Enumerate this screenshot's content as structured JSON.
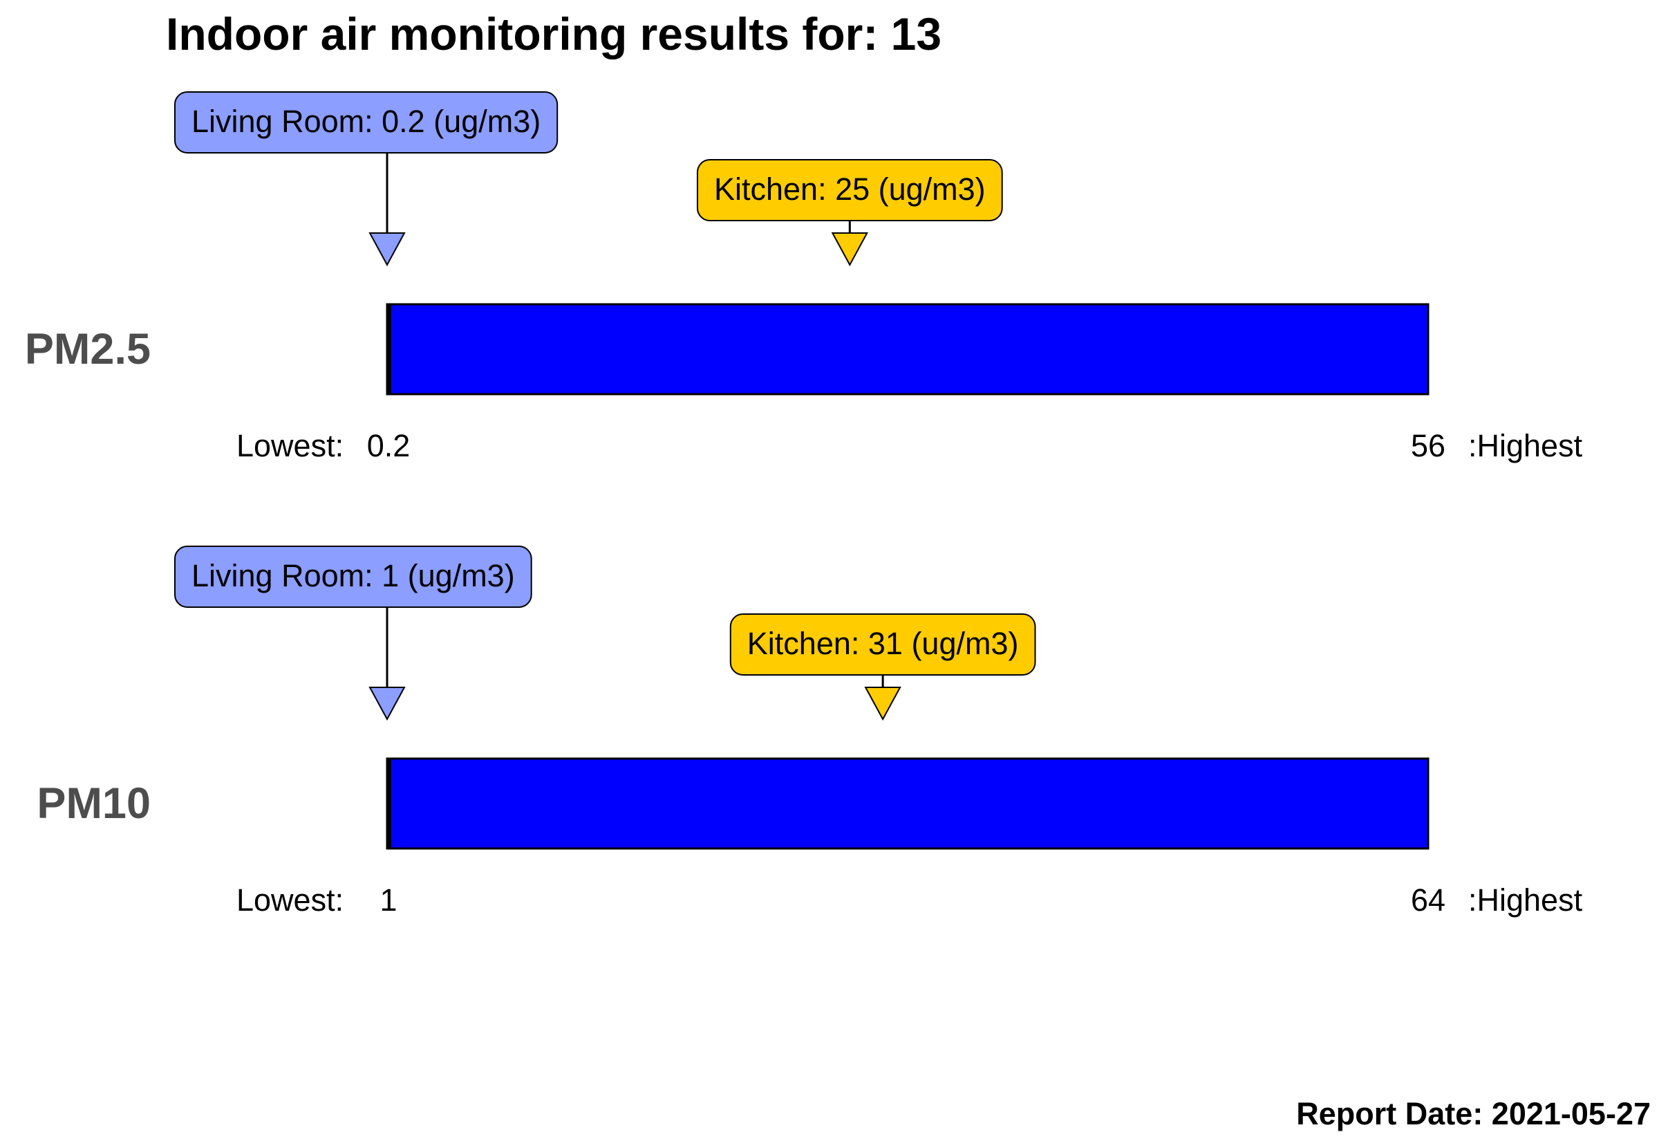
{
  "title": "Indoor air monitoring results for: 13",
  "report_date": "Report Date: 2021-05-27",
  "colors": {
    "bar": "#0000ff",
    "living_room": "#8c9eff",
    "kitchen": "#ffcc00",
    "pollutant_label": "#4d4d4d",
    "outline": "#000000"
  },
  "chart_data": [
    {
      "type": "bar",
      "pollutant": "PM2.5",
      "lowest_label": "Lowest:",
      "lowest_value": "0.2",
      "highest_value": "56",
      "highest_label": ":Highest",
      "range": [
        0.2,
        56
      ],
      "readings": [
        {
          "room": "Living Room",
          "value": 0.2,
          "label": "Living Room: 0.2 (ug/m3)",
          "color": "#8c9eff"
        },
        {
          "room": "Kitchen",
          "value": 25,
          "label": "Kitchen: 25 (ug/m3)",
          "color": "#ffcc00"
        }
      ]
    },
    {
      "type": "bar",
      "pollutant": "PM10",
      "lowest_label": "Lowest:",
      "lowest_value": "1",
      "highest_value": "64",
      "highest_label": ":Highest",
      "range": [
        1,
        64
      ],
      "readings": [
        {
          "room": "Living Room",
          "value": 1,
          "label": "Living Room: 1 (ug/m3)",
          "color": "#8c9eff"
        },
        {
          "room": "Kitchen",
          "value": 31,
          "label": "Kitchen: 31 (ug/m3)",
          "color": "#ffcc00"
        }
      ]
    }
  ]
}
